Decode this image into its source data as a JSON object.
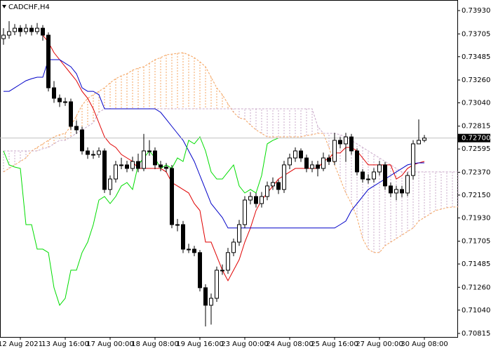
{
  "chart_data": {
    "type": "candlestick",
    "title": "CADCHF,H4",
    "categories": [
      null,
      null,
      null,
      "12 Aug 2021",
      null,
      null,
      null,
      null,
      null,
      null,
      null,
      "13 Aug 16:00",
      null,
      null,
      null,
      null,
      null,
      null,
      null,
      "17 Aug 00:00",
      null,
      null,
      null,
      null,
      null,
      null,
      null,
      "18 Aug 08:00",
      null,
      null,
      null,
      null,
      null,
      null,
      null,
      "19 Aug 16:00",
      null,
      null,
      null,
      null,
      null,
      null,
      null,
      "23 Aug 00:00",
      null,
      null,
      null,
      null,
      null,
      null,
      null,
      "24 Aug 08:00",
      null,
      null,
      null,
      null,
      null,
      null,
      null,
      "25 Aug 16:00",
      null,
      null,
      null,
      null,
      null,
      null,
      null,
      "27 Aug 00:00",
      null,
      null,
      null,
      null,
      null,
      null,
      null,
      "30 Aug 08:00",
      null,
      null,
      null,
      null,
      null,
      null
    ],
    "open": [
      0.73659,
      0.73693,
      0.73727,
      0.7376,
      0.73727,
      0.7376,
      0.73727,
      0.7376,
      0.73693,
      0.73185,
      0.73084,
      0.7305,
      0.7305,
      0.72813,
      0.72779,
      0.72576,
      0.72542,
      0.72542,
      0.72576,
      0.72204,
      0.72305,
      0.72441,
      0.72441,
      0.72407,
      0.72474,
      0.72407,
      0.72576,
      0.72576,
      0.72441,
      0.7242,
      0.72407,
      0.71865,
      0.71865,
      0.71628,
      0.71628,
      0.71595,
      0.71256,
      0.71087,
      0.71154,
      0.71425,
      0.71425,
      0.71595,
      0.71696,
      0.71865,
      0.72102,
      0.72136,
      0.72068,
      0.72136,
      0.72238,
      0.72271,
      0.72204,
      0.72441,
      0.72508,
      0.72576,
      0.72508,
      0.72407,
      0.72441,
      0.72407,
      0.72508,
      0.72474,
      0.72678,
      0.72644,
      0.72711,
      0.72576,
      0.72373,
      0.72305,
      0.72305,
      0.72373,
      0.72441,
      0.72238,
      0.7217,
      0.72204,
      0.7217,
      0.72339,
      0.72644,
      0.72678,
      null,
      null,
      null,
      null,
      null,
      null
    ],
    "high": [
      0.7376,
      0.73828,
      0.738,
      0.7379,
      0.738,
      0.7379,
      0.7381,
      0.7379,
      0.7372,
      0.7325,
      0.7312,
      0.7309,
      0.7308,
      0.7287,
      0.7281,
      0.7261,
      0.7258,
      0.7261,
      0.726,
      0.7234,
      0.7248,
      0.7251,
      0.7248,
      0.7252,
      0.7255,
      0.7274,
      0.7268,
      0.7261,
      0.7248,
      0.7246,
      0.7244,
      0.7192,
      0.719,
      0.7168,
      0.7166,
      0.7162,
      0.7129,
      0.712,
      0.7146,
      0.7148,
      0.7164,
      0.7173,
      0.7191,
      0.7214,
      0.7218,
      0.7217,
      0.7218,
      0.7228,
      0.7232,
      0.723,
      0.7248,
      0.7255,
      0.7261,
      0.726,
      0.7254,
      0.7248,
      0.7248,
      0.7256,
      0.7254,
      0.7275,
      0.7271,
      0.7275,
      0.7274,
      0.726,
      0.724,
      0.7235,
      0.7241,
      0.7248,
      0.7247,
      0.7227,
      0.7224,
      0.7224,
      0.7237,
      0.7268,
      0.7288,
      0.7273,
      null,
      null,
      null,
      null,
      null,
      null
    ],
    "low": [
      0.736,
      0.73659,
      0.73693,
      0.7368,
      0.737,
      0.7369,
      0.737,
      0.7364,
      0.7315,
      0.7304,
      0.73,
      0.7301,
      0.7278,
      0.7274,
      0.7254,
      0.725,
      0.725,
      0.7251,
      0.7217,
      0.7215,
      0.7227,
      0.724,
      0.7237,
      0.7238,
      0.7237,
      0.7238,
      0.7253,
      0.724,
      0.7238,
      0.7237,
      0.7183,
      0.718,
      0.7159,
      0.7159,
      0.7156,
      0.7122,
      0.70883,
      0.709,
      0.7112,
      0.7138,
      0.7139,
      0.7156,
      0.7166,
      0.7183,
      0.7206,
      0.7203,
      0.7203,
      0.721,
      0.722,
      0.7216,
      0.7217,
      0.724,
      0.7247,
      0.7247,
      0.7237,
      0.7237,
      0.7233,
      0.7238,
      0.7244,
      0.7244,
      0.726,
      0.7247,
      0.7254,
      0.7234,
      0.7227,
      0.7226,
      0.7227,
      0.7234,
      0.722,
      0.7213,
      0.721,
      0.7213,
      0.7214,
      0.723,
      0.7264,
      0.7266,
      null,
      null,
      null,
      null,
      null,
      null
    ],
    "close": [
      0.73693,
      0.73727,
      0.7376,
      0.73727,
      0.7376,
      0.73727,
      0.7376,
      0.73693,
      0.73185,
      0.73084,
      0.7305,
      0.7305,
      0.72813,
      0.72779,
      0.72576,
      0.72542,
      0.72542,
      0.72576,
      0.72204,
      0.72305,
      0.72441,
      0.72441,
      0.72407,
      0.72474,
      0.72407,
      0.72576,
      0.72576,
      0.72441,
      0.7242,
      0.72407,
      0.71865,
      0.71865,
      0.71628,
      0.71628,
      0.71595,
      0.71256,
      0.71087,
      0.71154,
      0.71425,
      0.71425,
      0.71595,
      0.71696,
      0.71865,
      0.72102,
      0.72136,
      0.72068,
      0.72136,
      0.72238,
      0.72271,
      0.72204,
      0.72441,
      0.72508,
      0.72576,
      0.72508,
      0.72407,
      0.72441,
      0.72407,
      0.72508,
      0.72474,
      0.72678,
      0.72644,
      0.72711,
      0.72576,
      0.72373,
      0.72305,
      0.72305,
      0.72373,
      0.72441,
      0.72238,
      0.7217,
      0.72204,
      0.7217,
      0.72339,
      0.72644,
      0.72678,
      0.727,
      null,
      null,
      null,
      null,
      null,
      null
    ],
    "up_color": "#ffffff",
    "down_color": "#000000",
    "wick_color": "#000000",
    "lines": [
      {
        "color": "#e00000",
        "values": [
          null,
          null,
          null,
          null,
          null,
          null,
          null,
          0.73693,
          0.73625,
          0.73524,
          0.73456,
          0.73388,
          0.73321,
          0.73253,
          0.73151,
          0.73084,
          0.72982,
          0.72847,
          0.72711,
          0.72644,
          0.7261,
          0.72542,
          0.72508,
          0.72474,
          0.72407,
          0.72407,
          0.72407,
          0.72407,
          0.72407,
          0.72373,
          0.72271,
          0.72238,
          0.72204,
          0.7217,
          0.72068,
          0.72001,
          0.71696,
          0.71696,
          0.71561,
          0.71425,
          0.71324,
          0.71425,
          0.71527,
          0.71696,
          0.71832,
          0.72001,
          0.72102,
          0.7217,
          0.72238,
          0.72305,
          0.72339,
          0.72373,
          0.72407,
          0.72407,
          0.72407,
          0.72407,
          0.72407,
          0.72474,
          0.72508,
          0.72556,
          0.72556,
          0.7261,
          0.7261,
          0.72576,
          0.72508,
          0.72441,
          0.72441,
          0.72441,
          0.72441,
          0.72441,
          0.72305,
          0.72339,
          0.72407,
          0.72441,
          0.72461,
          0.72474,
          null,
          null,
          null,
          null,
          null,
          null
        ]
      },
      {
        "color": "#0000c8",
        "values": [
          0.73151,
          0.73151,
          0.73185,
          0.73219,
          0.73253,
          0.73273,
          0.73287,
          0.73287,
          0.73456,
          0.73456,
          0.73456,
          0.73422,
          0.73388,
          0.73321,
          0.73185,
          0.73151,
          0.73151,
          0.73118,
          0.72982,
          0.72982,
          0.72982,
          0.72982,
          0.72982,
          0.72982,
          0.72982,
          0.72982,
          0.72982,
          0.72982,
          0.72948,
          0.72881,
          0.72813,
          0.72745,
          0.72678,
          0.72576,
          0.72474,
          0.72339,
          0.72204,
          0.72068,
          0.72001,
          0.71933,
          0.71832,
          0.71832,
          0.71832,
          0.71832,
          0.71832,
          0.71832,
          0.71832,
          0.71832,
          0.71832,
          0.71832,
          0.71832,
          0.71832,
          0.71832,
          0.71832,
          0.71832,
          0.71832,
          0.71832,
          0.71832,
          0.71832,
          0.71832,
          0.71865,
          0.71899,
          0.72001,
          0.72068,
          0.72136,
          0.72204,
          0.72238,
          0.72271,
          0.72305,
          0.72339,
          0.72373,
          0.72407,
          0.72441,
          0.72454,
          0.72461,
          0.72461,
          null,
          null,
          null,
          null,
          null,
          null
        ]
      },
      {
        "color": "#00dd00",
        "values": [
          0.72576,
          0.72441,
          0.7242,
          0.72407,
          0.71865,
          0.71865,
          0.71628,
          0.71628,
          0.71595,
          0.71256,
          0.71087,
          0.71154,
          0.71425,
          0.71425,
          0.71595,
          0.71696,
          0.71865,
          0.72102,
          0.72136,
          0.72068,
          0.72136,
          0.72238,
          0.72271,
          0.72204,
          0.72441,
          0.72508,
          0.72576,
          0.72508,
          0.72407,
          0.72441,
          0.72407,
          0.72508,
          0.72474,
          0.72678,
          0.72644,
          0.72711,
          0.72576,
          0.72373,
          0.72305,
          0.72305,
          0.72373,
          0.72441,
          0.72238,
          0.7217,
          0.72204,
          0.7217,
          0.72339,
          0.72644,
          0.72678,
          0.727,
          null,
          null,
          null,
          null,
          null,
          null,
          null,
          null,
          null,
          null,
          null,
          null,
          null,
          null,
          null,
          null,
          null,
          null,
          null,
          null,
          null,
          null,
          null,
          null,
          null,
          null,
          null,
          null,
          null,
          null,
          null,
          null
        ]
      }
    ],
    "cloud": {
      "up_color": "#f4a460",
      "down_color": "#c9a9c9",
      "span_a": [
        0.72373,
        0.72407,
        0.72441,
        0.72474,
        0.72508,
        0.72576,
        0.7261,
        0.72644,
        0.72678,
        0.72711,
        0.72732,
        0.72745,
        0.72813,
        0.72915,
        0.73016,
        0.73084,
        0.73118,
        0.73151,
        0.73185,
        0.73233,
        0.73273,
        0.73301,
        0.73321,
        0.73355,
        0.73375,
        0.73388,
        0.73422,
        0.73456,
        0.73476,
        0.73503,
        0.7351,
        0.73517,
        0.73524,
        0.73503,
        0.73476,
        0.73436,
        0.73388,
        0.73287,
        0.73185,
        0.73118,
        0.7303,
        0.72948,
        0.72894,
        0.72881,
        0.72826,
        0.72779,
        0.72745,
        0.72711,
        0.72711,
        0.72711,
        0.72711,
        0.72711,
        0.72711,
        0.72711,
        0.72725,
        0.72732,
        0.72745,
        0.72745,
        0.7261,
        0.72441,
        0.72305,
        0.7217,
        0.72068,
        0.71933,
        0.7173,
        0.71628,
        0.71595,
        0.71595,
        0.71662,
        0.71696,
        0.7173,
        0.71764,
        0.71798,
        0.71832,
        0.71899,
        0.71933,
        0.71967,
        0.72001,
        0.72014,
        0.72028,
        0.72035,
        0.72035
      ],
      "span_b": [
        0.72576,
        0.72576,
        0.72576,
        0.72576,
        0.72576,
        0.72576,
        0.72576,
        0.72597,
        0.7261,
        0.72644,
        0.72678,
        0.72678,
        0.72711,
        0.72745,
        0.72779,
        0.72813,
        0.72847,
        0.72948,
        0.72982,
        0.72982,
        0.72982,
        0.72982,
        0.72982,
        0.72982,
        0.72982,
        0.72982,
        0.72982,
        0.72982,
        0.72982,
        0.72982,
        0.72982,
        0.72982,
        0.72982,
        0.72982,
        0.72982,
        0.72982,
        0.72982,
        0.72982,
        0.72982,
        0.72982,
        0.72982,
        0.72982,
        0.72982,
        0.72982,
        0.72982,
        0.72982,
        0.72982,
        0.72982,
        0.72982,
        0.72982,
        0.72982,
        0.72982,
        0.72982,
        0.72982,
        0.72982,
        0.72982,
        0.72813,
        0.72745,
        0.72745,
        0.72745,
        0.72732,
        0.72711,
        0.72678,
        0.72644,
        0.7261,
        0.72576,
        0.72542,
        0.72508,
        0.72474,
        0.72441,
        0.72407,
        0.72373,
        0.72373,
        0.72373,
        0.72373,
        0.72373,
        0.72373,
        0.72373,
        0.72373,
        0.72373,
        0.72373,
        0.72373
      ]
    },
    "last_price": {
      "value": 0.727,
      "label": "0.72700"
    },
    "ylim": [
      0.70781,
      0.74032
    ],
    "yticks": [
      {
        "value": 0.7393,
        "label": "0.73930"
      },
      0.73705,
      0.73485,
      {
        "value": 0.7326,
        "label": "0.73260"
      },
      {
        "value": 0.7304,
        "label": "0.73040"
      },
      0.72815,
      0.72595,
      {
        "value": 0.7237,
        "label": "0.72370"
      },
      {
        "value": 0.7215,
        "label": "0.72150"
      },
      {
        "value": 0.7193,
        "label": "0.71930"
      },
      0.71705,
      0.71485,
      {
        "value": 0.7126,
        "label": "0.71260"
      },
      {
        "value": 0.7104,
        "label": "0.71040"
      },
      0.70815
    ]
  }
}
